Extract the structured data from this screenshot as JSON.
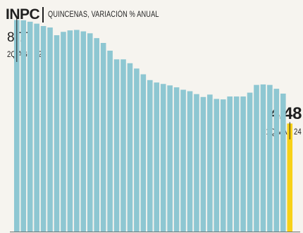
{
  "chart_data": {
    "type": "bar",
    "title": "INPC",
    "subtitle": "QUINCENAS, VARIACIÓN % ANUAL",
    "ylim": [
      0,
      9.6
    ],
    "grid": false,
    "bar_color": "#8ec7d2",
    "highlight_color": "#f7d117",
    "annotations": {
      "start": {
        "value": "8.77",
        "label": "2Q AGO 22"
      },
      "end": {
        "value": "4.48",
        "label": "1Q MAR 24"
      }
    },
    "values": [
      8.77,
      8.76,
      8.7,
      8.62,
      8.52,
      8.46,
      8.14,
      8.28,
      8.34,
      8.36,
      8.3,
      8.22,
      8.02,
      7.82,
      7.5,
      7.14,
      7.14,
      6.98,
      6.76,
      6.52,
      6.28,
      6.18,
      6.12,
      6.06,
      5.98,
      5.88,
      5.82,
      5.7,
      5.58,
      5.68,
      5.5,
      5.48,
      5.6,
      5.6,
      5.6,
      5.76,
      6.08,
      6.1,
      6.08,
      5.92,
      5.72,
      4.48
    ]
  }
}
